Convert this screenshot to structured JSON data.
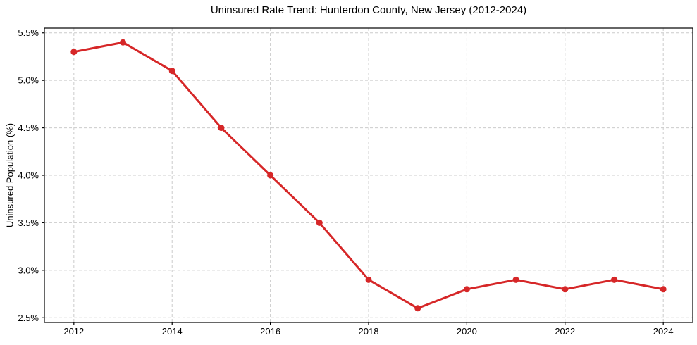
{
  "chart_data": {
    "type": "line",
    "title": "Uninsured Rate Trend: Hunterdon County, New Jersey (2012-2024)",
    "xlabel": "",
    "ylabel": "Uninsured Population (%)",
    "x": [
      2012,
      2013,
      2014,
      2015,
      2016,
      2017,
      2018,
      2019,
      2020,
      2021,
      2022,
      2023,
      2024
    ],
    "values": [
      5.3,
      5.4,
      5.1,
      4.5,
      4.0,
      3.5,
      2.9,
      2.6,
      2.8,
      2.9,
      2.8,
      2.9,
      2.8
    ],
    "x_ticks": [
      2012,
      2014,
      2016,
      2018,
      2020,
      2022,
      2024
    ],
    "x_tick_labels": [
      "2012",
      "2014",
      "2016",
      "2018",
      "2020",
      "2022",
      "2024"
    ],
    "y_ticks": [
      2.5,
      3.0,
      3.5,
      4.0,
      4.5,
      5.0,
      5.5
    ],
    "y_tick_labels": [
      "2.5%",
      "3.0%",
      "3.5%",
      "4.0%",
      "4.5%",
      "5.0%",
      "5.5%"
    ],
    "xlim": [
      2011.4,
      2024.6
    ],
    "ylim": [
      2.45,
      5.55
    ],
    "grid": true,
    "grid_style": "dashed",
    "legend": "none",
    "marker": "circle"
  },
  "colors": {
    "line": "#d62728",
    "marker": "#d62728",
    "grid": "#cccccc",
    "spine": "#000000",
    "text": "#000000",
    "background": "#ffffff"
  }
}
